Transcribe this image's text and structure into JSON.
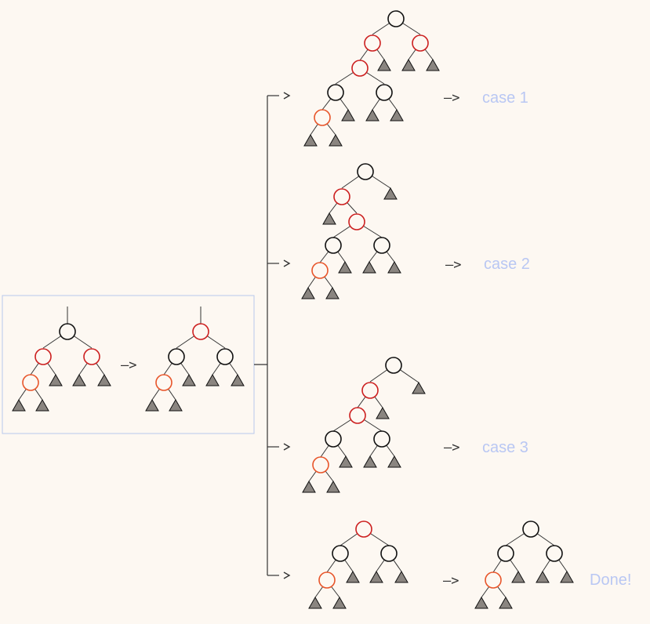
{
  "colors": {
    "background": "#fdf8f2",
    "black_node": "#111111",
    "red_node": "#cc1f1f",
    "new_node": "#e8552a",
    "leaf_fill": "#8a8580",
    "label": "#b9c7f3",
    "box": "#b8c8ec"
  },
  "arrow_text": "–>",
  "labels": {
    "case1": "case 1",
    "case2": "case 2",
    "case3": "case 3",
    "done": "Done!"
  },
  "legend_nodes": [
    "black-node",
    "red-node",
    "new-red-node",
    "subtree-leaf-icon"
  ]
}
